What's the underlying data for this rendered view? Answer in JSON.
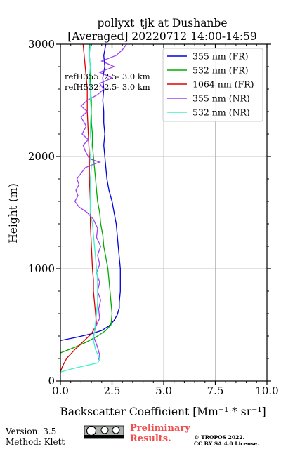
{
  "chart_data": {
    "type": "line",
    "title_line1": "pollyxt_tjk at Dushanbe",
    "title_line2": "[Averaged] 20220712 14:00-14:59",
    "xlabel": "Backscatter Coefficient [Mm⁻¹ * sr⁻¹]",
    "ylabel": "Height (m)",
    "xlim": [
      0,
      10
    ],
    "ylim": [
      0,
      3000
    ],
    "xticks": [
      0,
      2.5,
      5,
      7.5,
      10
    ],
    "xtick_labels": [
      "0.0",
      "2.5",
      "5.0",
      "7.5",
      "10.0"
    ],
    "yticks": [
      0,
      1000,
      2000,
      3000
    ],
    "ytick_labels": [
      "0",
      "1000",
      "2000",
      "3000"
    ],
    "grid": true,
    "legend_position": "top-right",
    "annotations": [
      "refH355: 2.5- 3.0 km",
      "refH532: 2.5- 3.0 km"
    ],
    "series": [
      {
        "name": "355 nm (FR)",
        "color": "#0000dd",
        "points": [
          [
            0,
            360
          ],
          [
            0.8,
            390
          ],
          [
            1.5,
            420
          ],
          [
            2.0,
            450
          ],
          [
            2.35,
            490
          ],
          [
            2.6,
            540
          ],
          [
            2.75,
            590
          ],
          [
            2.85,
            650
          ],
          [
            2.85,
            700
          ],
          [
            2.9,
            800
          ],
          [
            2.9,
            900
          ],
          [
            2.9,
            1000
          ],
          [
            2.85,
            1100
          ],
          [
            2.8,
            1200
          ],
          [
            2.75,
            1300
          ],
          [
            2.7,
            1400
          ],
          [
            2.6,
            1500
          ],
          [
            2.5,
            1600
          ],
          [
            2.35,
            1700
          ],
          [
            2.25,
            1800
          ],
          [
            2.2,
            1900
          ],
          [
            2.15,
            2000
          ],
          [
            2.1,
            2100
          ],
          [
            2.15,
            2200
          ],
          [
            2.1,
            2300
          ],
          [
            2.1,
            2400
          ],
          [
            2.05,
            2500
          ],
          [
            2.1,
            2600
          ],
          [
            2.05,
            2700
          ],
          [
            2.15,
            2800
          ],
          [
            2.1,
            2900
          ],
          [
            2.2,
            3000
          ]
        ]
      },
      {
        "name": "532 nm (FR)",
        "color": "#00aa00",
        "points": [
          [
            0,
            250
          ],
          [
            0.7,
            300
          ],
          [
            1.3,
            350
          ],
          [
            1.8,
            400
          ],
          [
            2.2,
            450
          ],
          [
            2.45,
            500
          ],
          [
            2.5,
            600
          ],
          [
            2.45,
            700
          ],
          [
            2.4,
            800
          ],
          [
            2.35,
            900
          ],
          [
            2.3,
            1000
          ],
          [
            2.2,
            1100
          ],
          [
            2.1,
            1200
          ],
          [
            2.05,
            1300
          ],
          [
            1.95,
            1400
          ],
          [
            1.9,
            1500
          ],
          [
            1.8,
            1600
          ],
          [
            1.75,
            1700
          ],
          [
            1.7,
            1800
          ],
          [
            1.65,
            1900
          ],
          [
            1.6,
            2000
          ],
          [
            1.55,
            2100
          ],
          [
            1.55,
            2200
          ],
          [
            1.5,
            2300
          ],
          [
            1.5,
            2400
          ],
          [
            1.5,
            2500
          ],
          [
            1.45,
            2600
          ],
          [
            1.45,
            2700
          ],
          [
            1.45,
            2800
          ],
          [
            1.4,
            2900
          ],
          [
            1.4,
            3000
          ]
        ]
      },
      {
        "name": "1064 nm (FR)",
        "color": "#dd0000",
        "points": [
          [
            0,
            80
          ],
          [
            0.1,
            130
          ],
          [
            0.3,
            200
          ],
          [
            0.7,
            280
          ],
          [
            1.1,
            350
          ],
          [
            1.5,
            420
          ],
          [
            1.75,
            500
          ],
          [
            1.7,
            600
          ],
          [
            1.65,
            700
          ],
          [
            1.6,
            800
          ],
          [
            1.6,
            900
          ],
          [
            1.55,
            1000
          ],
          [
            1.5,
            1200
          ],
          [
            1.45,
            1400
          ],
          [
            1.45,
            1600
          ],
          [
            1.4,
            1800
          ],
          [
            1.4,
            2000
          ],
          [
            1.35,
            2200
          ],
          [
            1.3,
            2400
          ],
          [
            1.3,
            2600
          ],
          [
            1.2,
            2800
          ],
          [
            1.1,
            3000
          ]
        ]
      },
      {
        "name": "355 nm (NR)",
        "color": "#a040f0",
        "points": [
          [
            1.85,
            190
          ],
          [
            1.9,
            230
          ],
          [
            1.8,
            300
          ],
          [
            1.6,
            400
          ],
          [
            1.7,
            480
          ],
          [
            1.9,
            560
          ],
          [
            1.85,
            640
          ],
          [
            1.95,
            720
          ],
          [
            1.8,
            800
          ],
          [
            1.9,
            880
          ],
          [
            1.75,
            960
          ],
          [
            1.9,
            1040
          ],
          [
            1.8,
            1120
          ],
          [
            1.95,
            1200
          ],
          [
            1.75,
            1280
          ],
          [
            1.8,
            1360
          ],
          [
            1.6,
            1440
          ],
          [
            1.3,
            1500
          ],
          [
            0.9,
            1550
          ],
          [
            0.7,
            1600
          ],
          [
            0.85,
            1650
          ],
          [
            0.75,
            1700
          ],
          [
            0.9,
            1750
          ],
          [
            0.8,
            1800
          ],
          [
            1.0,
            1850
          ],
          [
            1.2,
            1900
          ],
          [
            1.6,
            1930
          ],
          [
            1.9,
            1950
          ],
          [
            1.4,
            1980
          ],
          [
            1.2,
            2050
          ],
          [
            1.1,
            2100
          ],
          [
            1.35,
            2150
          ],
          [
            1.05,
            2200
          ],
          [
            1.25,
            2270
          ],
          [
            1.0,
            2350
          ],
          [
            1.3,
            2400
          ],
          [
            1.0,
            2450
          ],
          [
            1.3,
            2500
          ],
          [
            1.8,
            2550
          ],
          [
            2.1,
            2600
          ],
          [
            1.9,
            2650
          ],
          [
            2.5,
            2700
          ],
          [
            1.9,
            2750
          ],
          [
            2.6,
            2800
          ],
          [
            2.0,
            2850
          ],
          [
            2.7,
            2900
          ],
          [
            3.0,
            2950
          ],
          [
            3.2,
            3000
          ]
        ]
      },
      {
        "name": "532 nm (NR)",
        "color": "#40f0c8",
        "points": [
          [
            0,
            80
          ],
          [
            0.6,
            110
          ],
          [
            1.3,
            140
          ],
          [
            1.8,
            160
          ],
          [
            1.9,
            190
          ],
          [
            1.85,
            220
          ],
          [
            1.7,
            280
          ],
          [
            1.6,
            360
          ],
          [
            1.65,
            440
          ],
          [
            1.7,
            520
          ],
          [
            1.75,
            600
          ],
          [
            1.8,
            700
          ],
          [
            1.8,
            800
          ],
          [
            1.8,
            900
          ],
          [
            1.75,
            1000
          ],
          [
            1.7,
            1100
          ],
          [
            1.65,
            1200
          ],
          [
            1.6,
            1300
          ],
          [
            1.55,
            1400
          ],
          [
            1.45,
            1500
          ],
          [
            1.45,
            1600
          ],
          [
            1.45,
            1700
          ],
          [
            1.45,
            1800
          ],
          [
            1.5,
            1900
          ],
          [
            1.45,
            2000
          ],
          [
            1.5,
            2100
          ],
          [
            1.45,
            2200
          ],
          [
            1.45,
            2300
          ],
          [
            1.5,
            2400
          ],
          [
            1.45,
            2500
          ],
          [
            1.45,
            2600
          ],
          [
            1.4,
            2700
          ],
          [
            1.45,
            2800
          ],
          [
            1.4,
            2900
          ],
          [
            1.45,
            3000
          ]
        ]
      }
    ]
  },
  "footer": {
    "version": "Version: 3.5",
    "method": "Method: Klett",
    "prelim_line1": "Preliminary",
    "prelim_line2": "Results.",
    "copyright_line1": "© TROPOS 2022.",
    "copyright_line2": "CC BY SA 4.0 License."
  }
}
